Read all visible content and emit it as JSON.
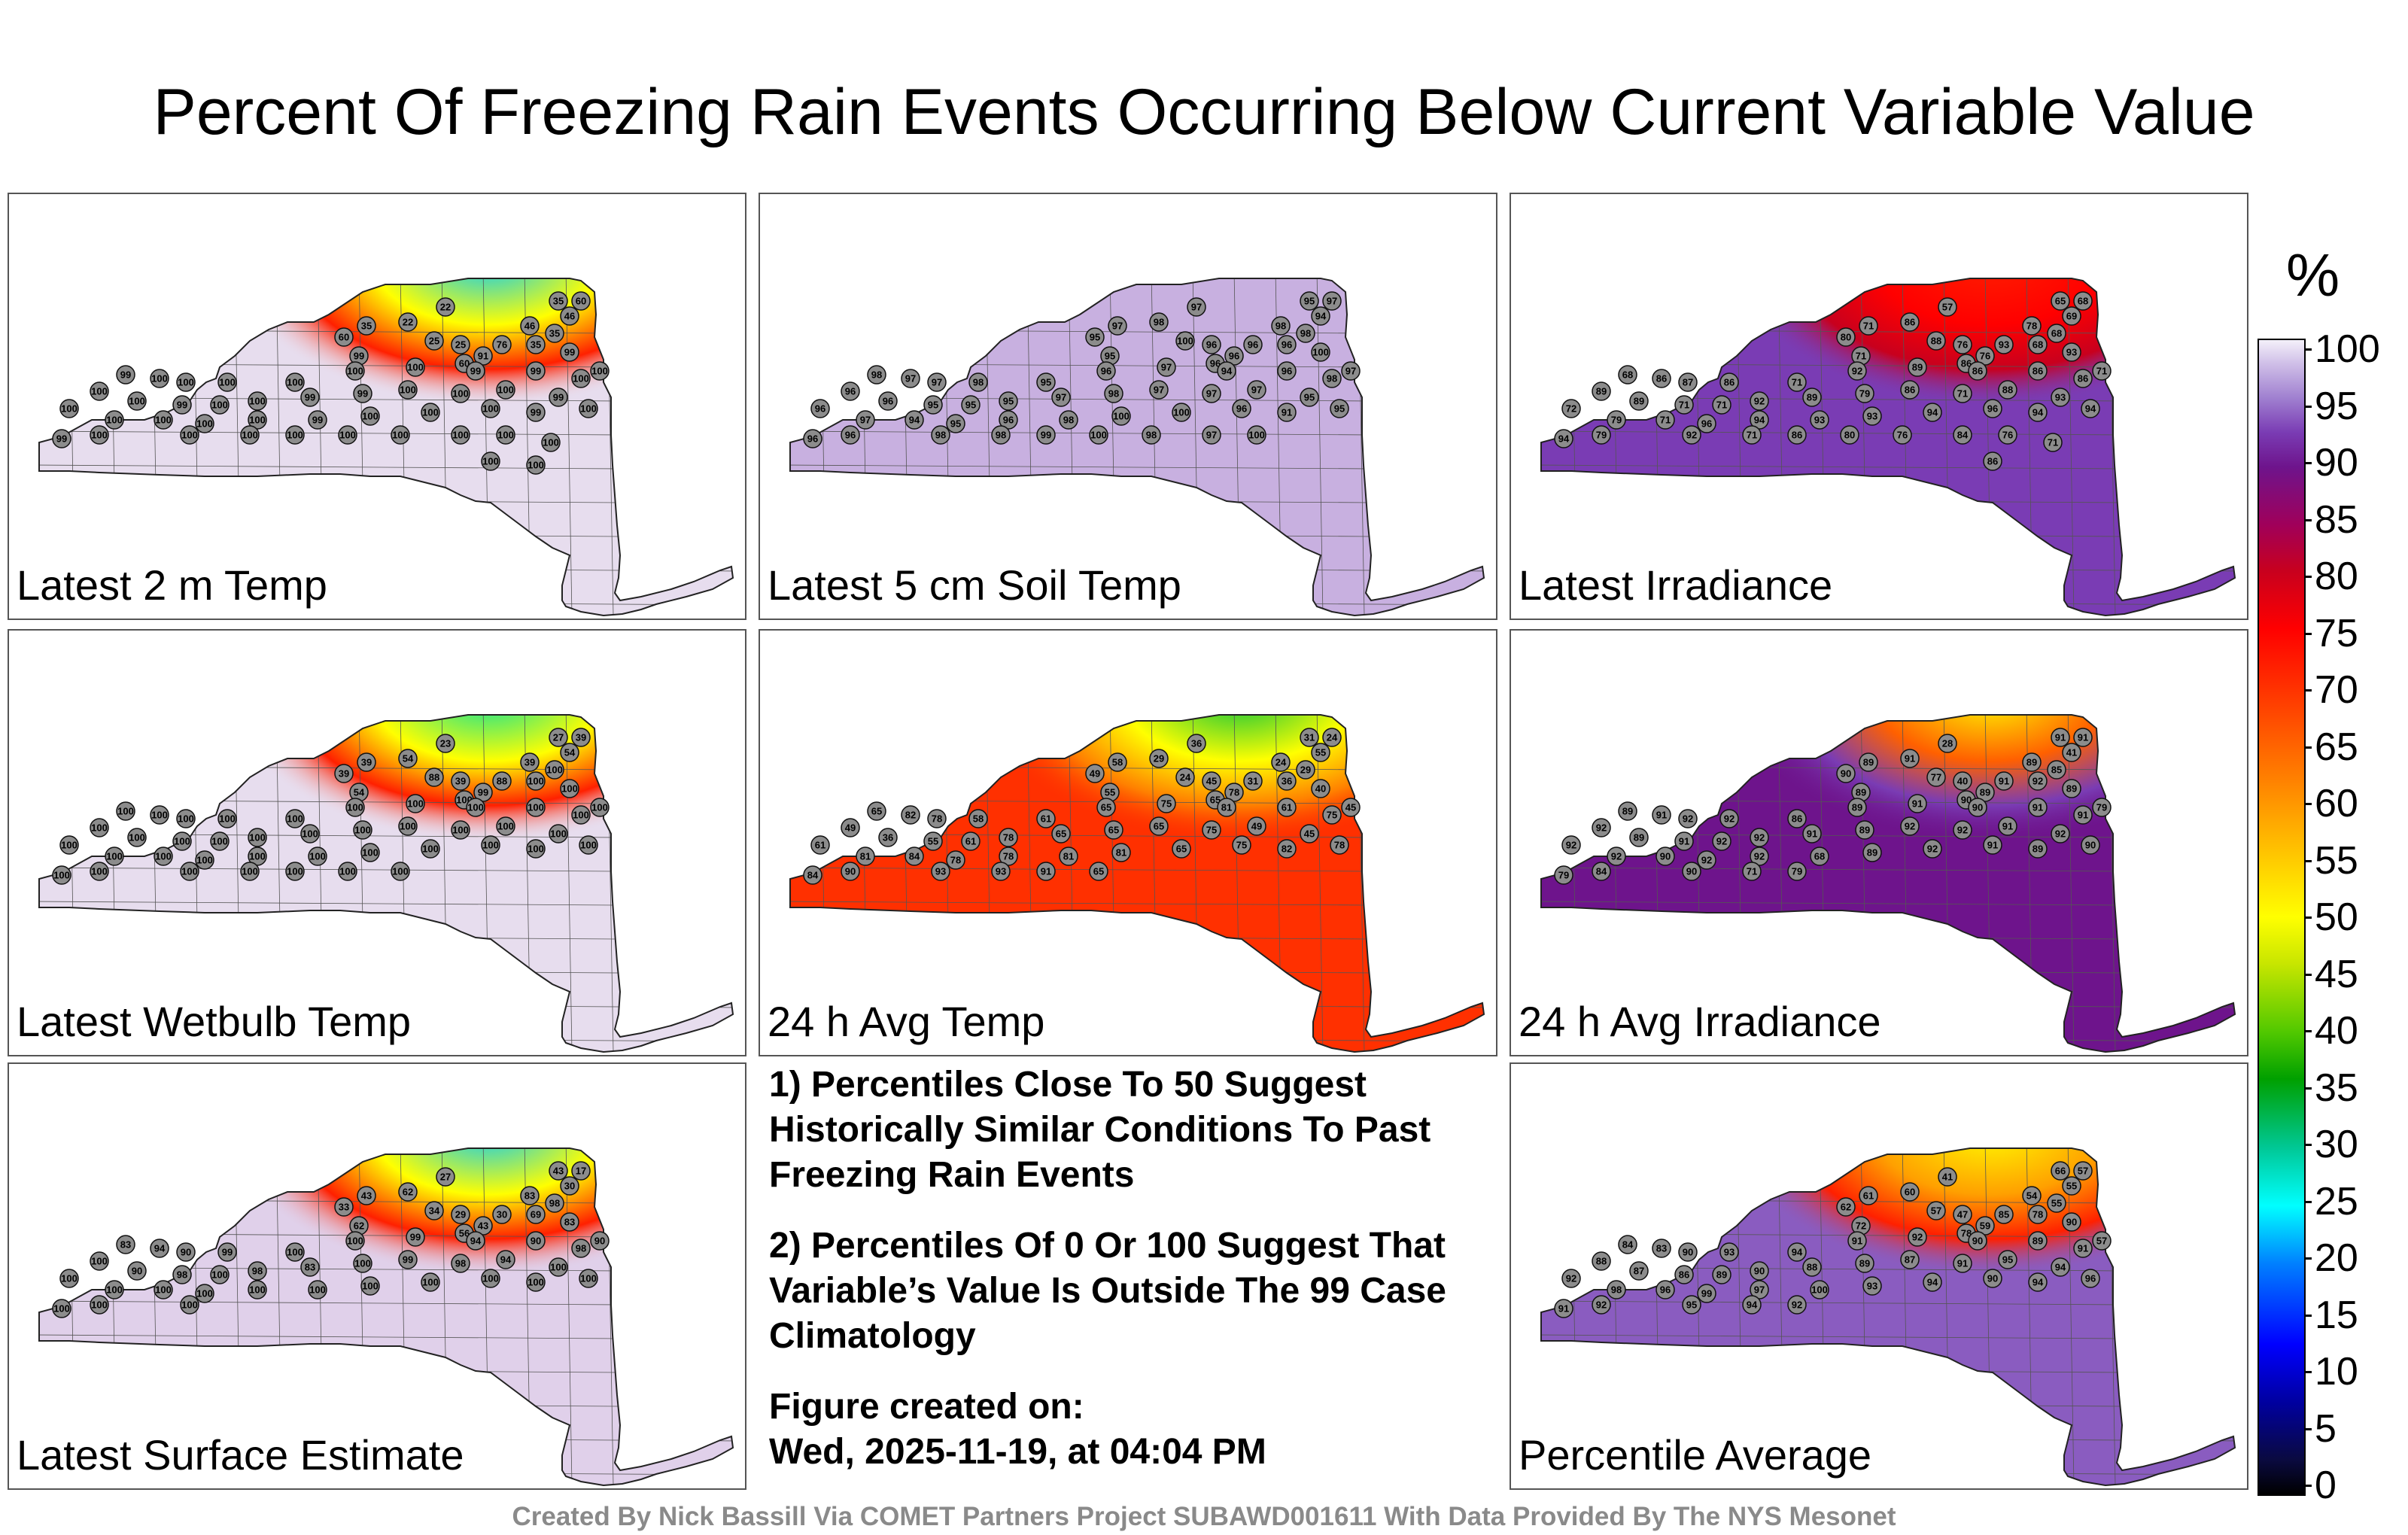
{
  "title": "Percent Of Freezing Rain Events Occurring Below Current Variable Value",
  "colors": {
    "outline": "#222222",
    "station_fill": "#8c8c8c",
    "light_lavender": "#e8dcef",
    "purple": "#7a3cb4"
  },
  "panels": [
    {
      "label": "Latest 2 m Temp",
      "base_color": "#e7ddee",
      "stations": [
        "22",
        "60",
        "46",
        "35",
        "25",
        "25",
        "22",
        "60",
        "35",
        "76",
        "46",
        "35",
        "99",
        "91",
        "60",
        "35",
        "99",
        "100",
        "99",
        "100",
        "100",
        "100",
        "100",
        "100",
        "100",
        "99",
        "99",
        "100",
        "100",
        "100",
        "99",
        "100",
        "100",
        "99",
        "99",
        "100",
        "100",
        "100",
        "99",
        "100",
        "100",
        "100",
        "100",
        "100",
        "99",
        "100",
        "100",
        "100",
        "99",
        "100",
        "99",
        "100",
        "100",
        "100",
        "100",
        "100",
        "100",
        "100",
        "100",
        "100",
        "100",
        "100"
      ]
    },
    {
      "label": "Latest 5 cm Soil Temp",
      "base_color": "#c8b0e0",
      "stations": [
        "97",
        "97",
        "94",
        "95",
        "96",
        "100",
        "98",
        "95",
        "97",
        "96",
        "98",
        "98",
        "95",
        "96",
        "96",
        "96",
        "100",
        "97",
        "98",
        "97",
        "97",
        "98",
        "95",
        "96",
        "97",
        "94",
        "96",
        "98",
        "96",
        "96",
        "95",
        "95",
        "95",
        "97",
        "98",
        "97",
        "97",
        "97",
        "95",
        "96",
        "97",
        "94",
        "95",
        "96",
        "98",
        "100",
        "100",
        "96",
        "91",
        "95",
        "96",
        "96",
        "98",
        "98",
        "99",
        "100",
        "98",
        "97",
        "100"
      ]
    },
    {
      "label": "Latest Irradiance",
      "base_color": "#7a3cb4",
      "stations": [
        "57",
        "68",
        "69",
        "65",
        "76",
        "88",
        "86",
        "80",
        "71",
        "93",
        "78",
        "68",
        "71",
        "76",
        "86",
        "68",
        "93",
        "71",
        "68",
        "86",
        "87",
        "86",
        "71",
        "92",
        "89",
        "86",
        "86",
        "86",
        "89",
        "89",
        "71",
        "71",
        "92",
        "89",
        "79",
        "86",
        "71",
        "88",
        "93",
        "72",
        "79",
        "71",
        "96",
        "94",
        "93",
        "93",
        "94",
        "96",
        "94",
        "94",
        "94",
        "79",
        "92",
        "71",
        "86",
        "80",
        "76",
        "84",
        "76",
        "71",
        "86"
      ]
    },
    {
      "label": "Latest Wetbulb Temp",
      "base_color": "#e7ddee",
      "stations": [
        "23",
        "39",
        "54",
        "27",
        "39",
        "88",
        "54",
        "39",
        "39",
        "88",
        "39",
        "100",
        "54",
        "99",
        "100",
        "100",
        "100",
        "100",
        "100",
        "100",
        "100",
        "100",
        "100",
        "100",
        "100",
        "100",
        "100",
        "100",
        "100",
        "100",
        "100",
        "100",
        "100",
        "100",
        "100",
        "100",
        "100",
        "100",
        "100",
        "100",
        "100",
        "100",
        "100",
        "100",
        "100",
        "100",
        "100",
        "100",
        "100",
        "100",
        "100",
        "100",
        "100",
        "100",
        "100",
        "100",
        "100"
      ]
    },
    {
      "label": "24 h Avg Temp",
      "base_color": "#ff3000",
      "stations": [
        "36",
        "24",
        "55",
        "31",
        "45",
        "24",
        "29",
        "49",
        "58",
        "31",
        "24",
        "29",
        "55",
        "78",
        "65",
        "36",
        "40",
        "45",
        "65",
        "82",
        "78",
        "58",
        "61",
        "65",
        "75",
        "81",
        "61",
        "75",
        "49",
        "36",
        "55",
        "61",
        "78",
        "65",
        "65",
        "65",
        "75",
        "49",
        "45",
        "61",
        "81",
        "84",
        "78",
        "78",
        "81",
        "81",
        "65",
        "75",
        "82",
        "78",
        "84",
        "90",
        "93",
        "93",
        "91",
        "65"
      ]
    },
    {
      "label": "24 h Avg Irradiance",
      "base_color": "#6e148c",
      "stations": [
        "28",
        "91",
        "41",
        "91",
        "40",
        "77",
        "91",
        "90",
        "89",
        "91",
        "89",
        "85",
        "89",
        "89",
        "90",
        "92",
        "89",
        "79",
        "89",
        "91",
        "92",
        "92",
        "86",
        "89",
        "91",
        "90",
        "91",
        "91",
        "92",
        "89",
        "91",
        "92",
        "92",
        "91",
        "89",
        "92",
        "92",
        "91",
        "92",
        "92",
        "92",
        "90",
        "92",
        "92",
        "68",
        "89",
        "92",
        "91",
        "89",
        "90",
        "79",
        "84",
        "90",
        "71",
        "79"
      ]
    },
    {
      "label": "Latest Surface Estimate",
      "base_color": "#e0d0ea",
      "stations": [
        "27",
        "17",
        "30",
        "43",
        "29",
        "34",
        "62",
        "33",
        "43",
        "30",
        "83",
        "98",
        "62",
        "43",
        "56",
        "69",
        "83",
        "90",
        "83",
        "94",
        "90",
        "99",
        "100",
        "100",
        "99",
        "94",
        "90",
        "98",
        "100",
        "90",
        "98",
        "100",
        "98",
        "83",
        "100",
        "99",
        "98",
        "94",
        "100",
        "100",
        "100",
        "100",
        "100",
        "100",
        "100",
        "100",
        "100",
        "100",
        "100",
        "100",
        "100",
        "100",
        "100"
      ]
    },
    {
      "label": "Percentile Average",
      "base_color": "#8a5cc0",
      "stations": [
        "41",
        "57",
        "55",
        "66",
        "47",
        "57",
        "60",
        "62",
        "61",
        "85",
        "54",
        "55",
        "72",
        "59",
        "78",
        "78",
        "90",
        "57",
        "84",
        "83",
        "90",
        "93",
        "94",
        "91",
        "92",
        "90",
        "89",
        "91",
        "88",
        "87",
        "86",
        "89",
        "90",
        "88",
        "89",
        "87",
        "91",
        "95",
        "94",
        "92",
        "98",
        "96",
        "99",
        "97",
        "100",
        "93",
        "94",
        "90",
        "94",
        "96",
        "91",
        "92",
        "95",
        "94",
        "92"
      ]
    }
  ],
  "notes": {
    "note1": "1) Percentiles Close To 50 Suggest Historically Similar Conditions To Past Freezing Rain Events",
    "note2": "2) Percentiles Of 0 Or 100 Suggest That Variable’s Value Is Outside The 99 Case Climatology",
    "created_label": "Figure created on:",
    "created_date": "Wed, 2025-11-19, at 04:04 PM"
  },
  "colorbar": {
    "unit": "%",
    "ticks": [
      "100",
      "95",
      "90",
      "85",
      "80",
      "75",
      "70",
      "65",
      "60",
      "55",
      "50",
      "45",
      "40",
      "35",
      "30",
      "25",
      "20",
      "15",
      "10",
      "5",
      "0"
    ]
  },
  "footer": "Created By Nick Bassill Via COMET Partners Project SUBAWD001611 With Data Provided By The NYS Mesonet"
}
